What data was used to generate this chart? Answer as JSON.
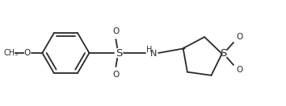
{
  "bg": "#ffffff",
  "lc": "#2a2a2a",
  "lw": 1.3,
  "fs": 7.5,
  "fig_w": 3.54,
  "fig_h": 1.32,
  "dpi": 100,
  "xlim": [
    0.0,
    10.0
  ],
  "ylim": [
    0.2,
    3.8
  ]
}
